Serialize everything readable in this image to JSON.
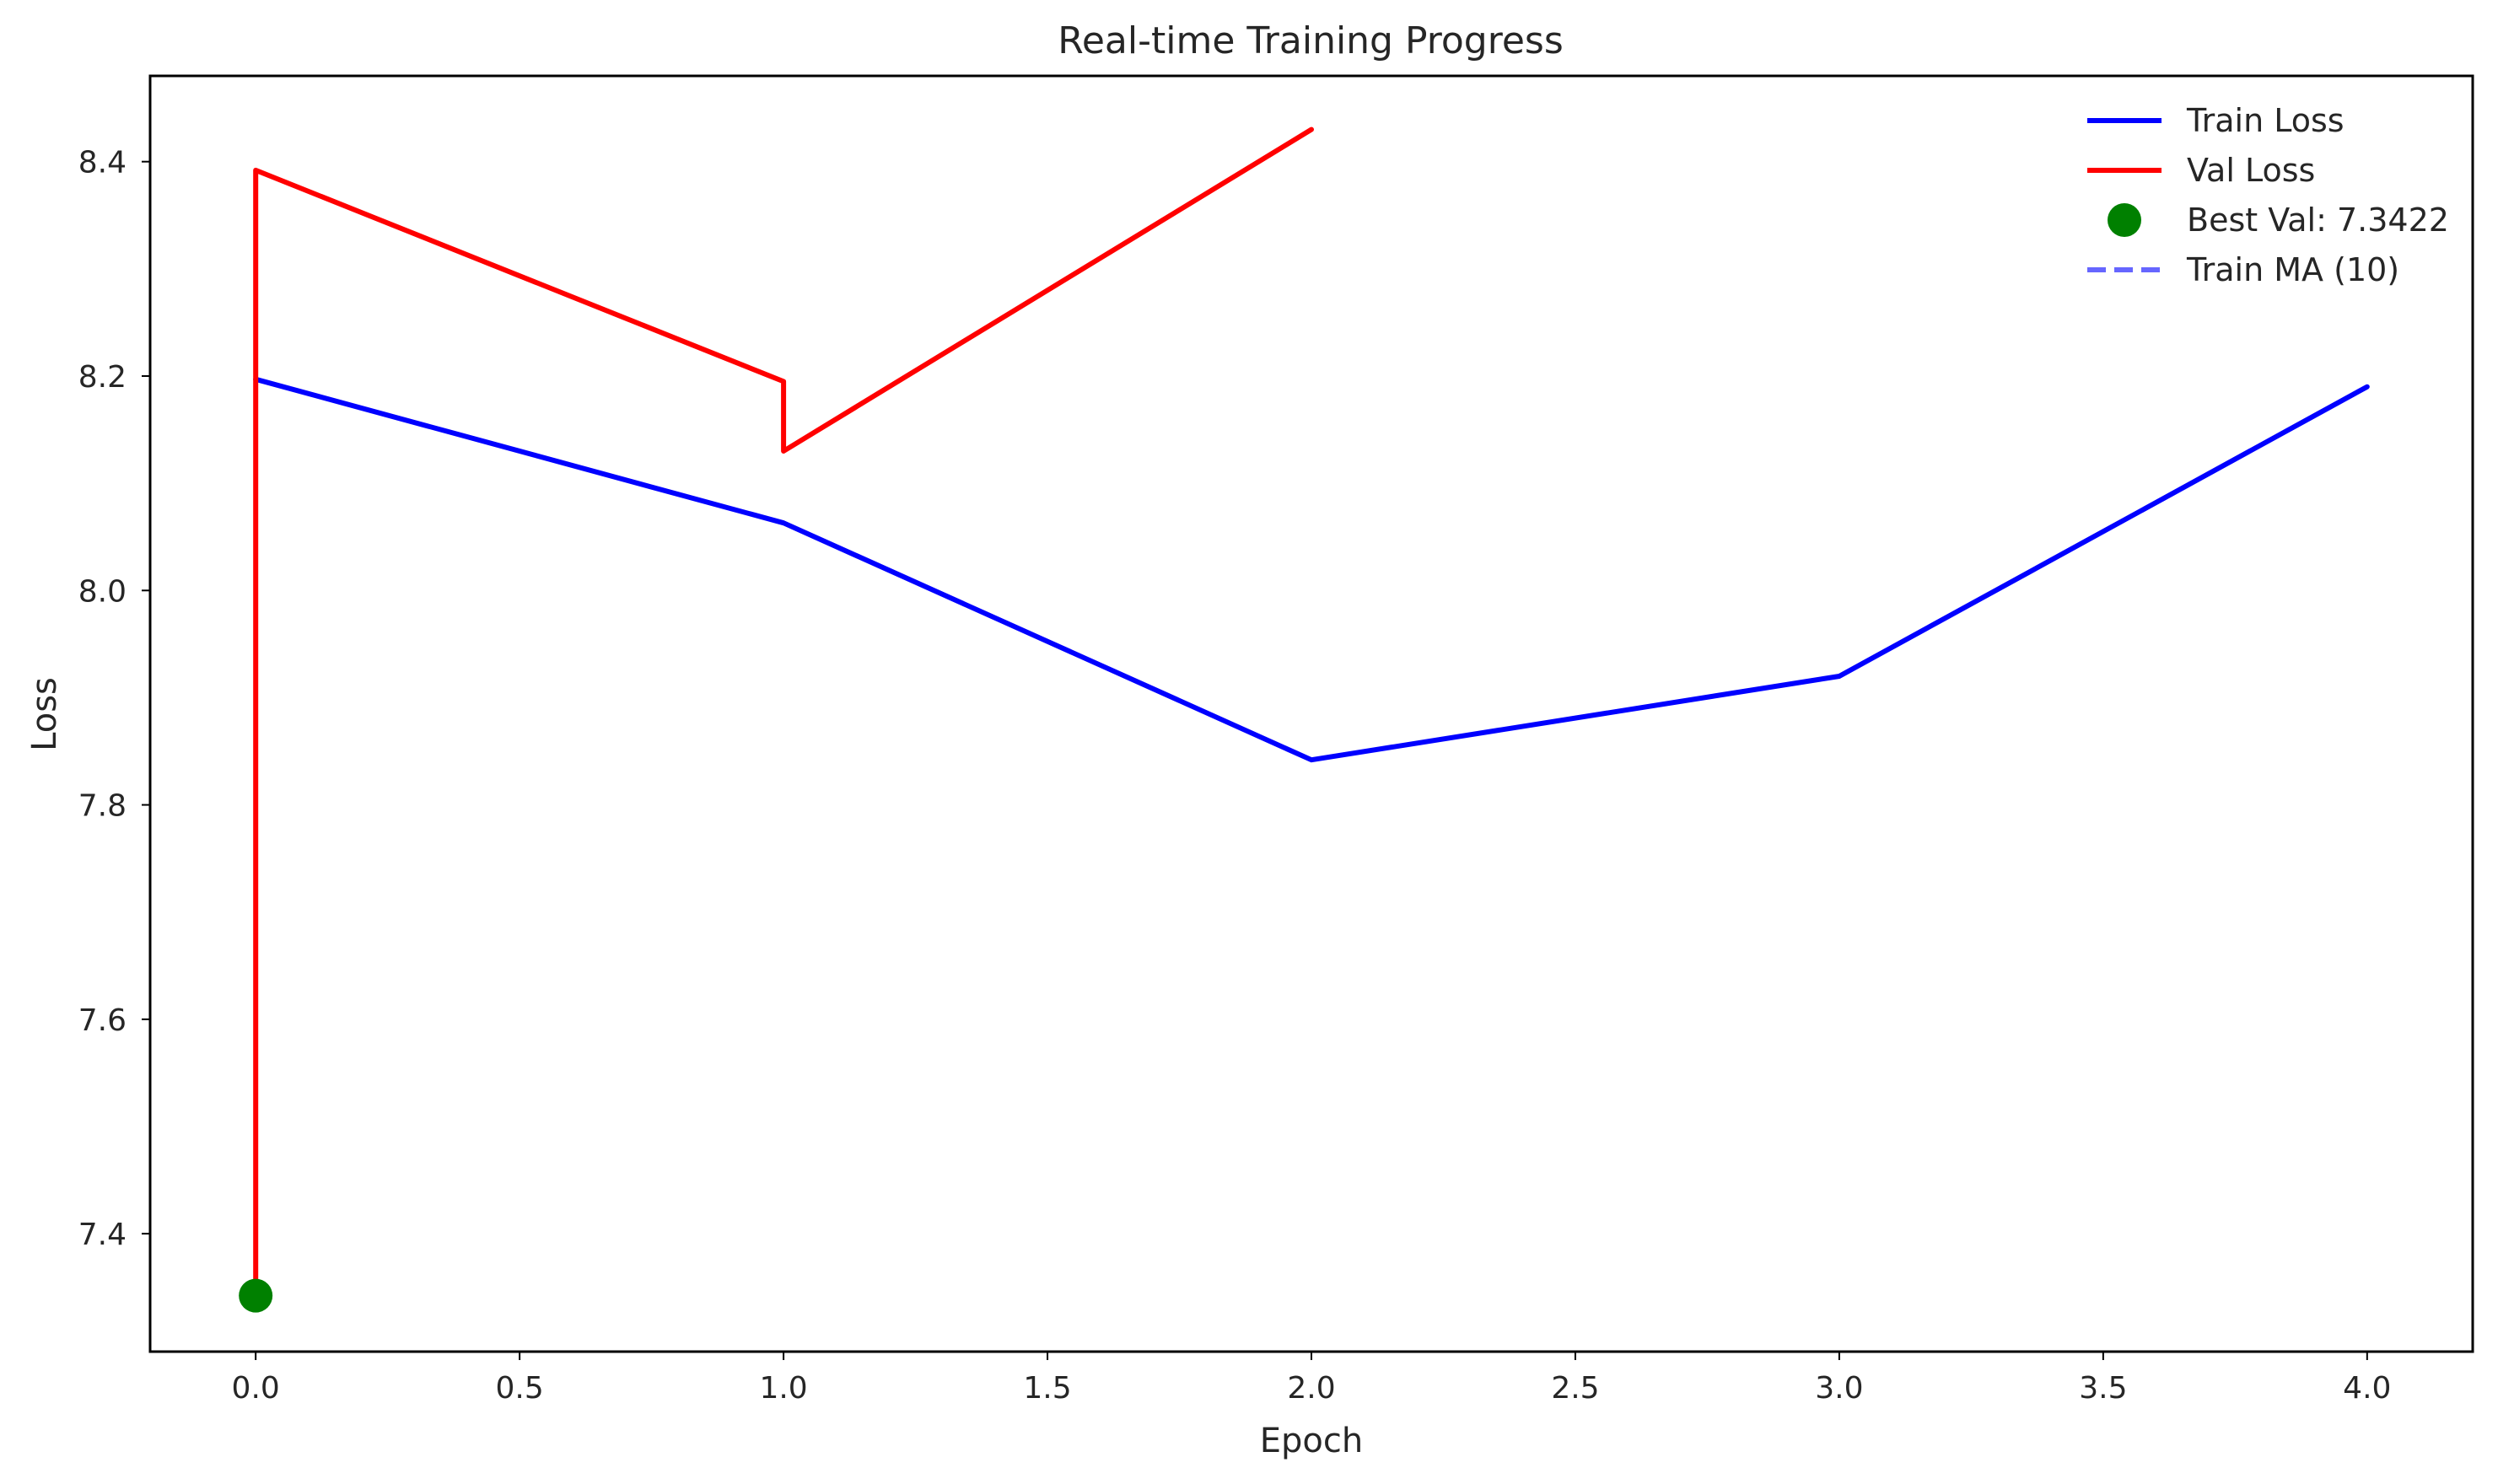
{
  "chart_data": {
    "type": "line",
    "title": "Real-time Training Progress",
    "xlabel": "Epoch",
    "ylabel": "Loss",
    "xlim": [
      -0.2,
      4.2
    ],
    "ylim": [
      7.29,
      8.48
    ],
    "x_ticks": [
      "0.0",
      "0.5",
      "1.0",
      "1.5",
      "2.0",
      "2.5",
      "3.0",
      "3.5",
      "4.0"
    ],
    "y_ticks": [
      "7.4",
      "7.6",
      "7.8",
      "8.0",
      "8.2",
      "8.4"
    ],
    "grid": false,
    "legend_position": "top-right",
    "series": [
      {
        "name": "Train Loss",
        "color": "#0000ff",
        "style": "solid",
        "points": [
          {
            "x": 0.0,
            "y": 8.197
          },
          {
            "x": 1.0,
            "y": 8.063
          },
          {
            "x": 2.0,
            "y": 7.842
          },
          {
            "x": 3.0,
            "y": 7.92
          },
          {
            "x": 4.0,
            "y": 8.19
          }
        ]
      },
      {
        "name": "Val Loss",
        "color": "#ff0000",
        "style": "solid",
        "points": [
          {
            "x": 0.0,
            "y": 7.3422
          },
          {
            "x": 0.0,
            "y": 8.392
          },
          {
            "x": 1.0,
            "y": 8.195
          },
          {
            "x": 1.0,
            "y": 8.13
          },
          {
            "x": 2.0,
            "y": 8.43
          }
        ]
      },
      {
        "name": "Best Val: 7.3422",
        "color": "#008000",
        "style": "marker",
        "points": [
          {
            "x": 0.0,
            "y": 7.3422
          }
        ]
      },
      {
        "name": "Train MA (10)",
        "color": "#6666ff",
        "style": "dashed",
        "points": []
      }
    ]
  }
}
